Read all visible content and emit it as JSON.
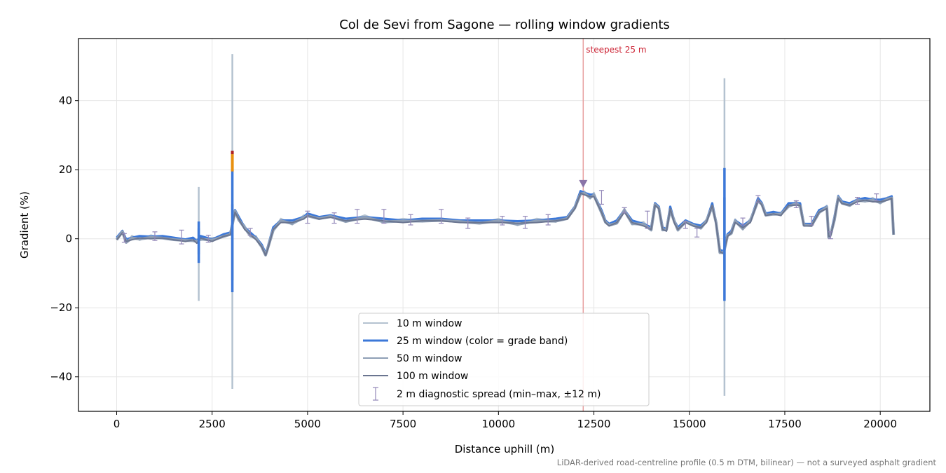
{
  "chart_data": {
    "type": "line",
    "title": "Col de Sevi from Sagone — rolling window gradients",
    "xlabel": "Distance uphill (m)",
    "ylabel": "Gradient (%)",
    "xlim": [
      -1000,
      21300
    ],
    "ylim": [
      -50,
      58
    ],
    "x_ticks": [
      0,
      2500,
      5000,
      7500,
      10000,
      12500,
      15000,
      17500,
      20000
    ],
    "x_tick_labels": [
      "0",
      "2500",
      "5000",
      "7500",
      "10000",
      "12500",
      "15000",
      "17500",
      "20000"
    ],
    "y_ticks": [
      -40,
      -20,
      0,
      20,
      40
    ],
    "y_tick_labels": [
      "−40",
      "−20",
      "0",
      "20",
      "40"
    ],
    "grid": true,
    "legend_position": "lower-center",
    "footnote": "LiDAR-derived road-centreline profile (0.5 m DTM, bilinear) — not a surveyed asphalt gradient",
    "annotation": {
      "text": "steepest 25 m",
      "x": 12220,
      "marker_y": 16
    },
    "colors": {
      "w10": "#b4c2d0",
      "w25": "#3c78d8",
      "w50": "#8f9fb5",
      "w100": "#6a7590",
      "spread": "#9287b8",
      "steep_line": "#e8a0a0",
      "steep_text": "#cc2233",
      "band_orange": "#e89010",
      "band_red": "#b02020"
    },
    "profile": {
      "x": [
        0,
        150,
        250,
        400,
        600,
        900,
        1200,
        1500,
        1800,
        2000,
        2100,
        2200,
        2500,
        2800,
        2980,
        3100,
        3200,
        3350,
        3500,
        3650,
        3800,
        3900,
        3950,
        4100,
        4300,
        4600,
        4900,
        5000,
        5300,
        5600,
        6000,
        6500,
        7000,
        7500,
        8000,
        8500,
        9000,
        9500,
        10000,
        10500,
        11000,
        11500,
        11800,
        12000,
        12150,
        12250,
        12400,
        12500,
        12700,
        12800,
        12900,
        13100,
        13300,
        13500,
        13800,
        14000,
        14100,
        14200,
        14300,
        14400,
        14500,
        14600,
        14700,
        14900,
        15100,
        15300,
        15450,
        15600,
        15700,
        15800,
        15900,
        16000,
        16100,
        16200,
        16400,
        16600,
        16800,
        16900,
        17000,
        17200,
        17400,
        17600,
        17800,
        17900,
        18000,
        18200,
        18400,
        18600,
        18650,
        18700,
        18800,
        18900,
        19000,
        19200,
        19400,
        19600,
        19800,
        20000,
        20200,
        20300,
        20350
      ],
      "y": [
        0,
        2,
        -0.5,
        0,
        0.5,
        0.3,
        0.5,
        0,
        -0.5,
        0,
        -1,
        0.5,
        -0.5,
        1,
        1.5,
        8,
        6,
        3,
        1.5,
        0,
        -2,
        -4.5,
        -3,
        3,
        5,
        5,
        6,
        7,
        6,
        6.5,
        5.5,
        6,
        5.5,
        5,
        5.5,
        5.5,
        5,
        5,
        5,
        4.8,
        5,
        5.5,
        6,
        9,
        13.5,
        13,
        12.5,
        12.5,
        8,
        5,
        4,
        5,
        8,
        5,
        4,
        3,
        10,
        9,
        3,
        2.5,
        9,
        5,
        3,
        5,
        4,
        3.5,
        5,
        10,
        4.5,
        -3.5,
        -4,
        1,
        2,
        5,
        3.5,
        5,
        11.5,
        10,
        7,
        7.5,
        7,
        10,
        10,
        10,
        4,
        4,
        8,
        9,
        1,
        1,
        6,
        12,
        10.5,
        10,
        11,
        11.5,
        11,
        11,
        11.5,
        12,
        1.5
      ]
    },
    "spikes": [
      {
        "x": 2150,
        "w10": [
          -18,
          15
        ],
        "w25": [
          -7,
          5
        ],
        "w50": [
          -4.5,
          3
        ]
      },
      {
        "x": 3030,
        "w10": [
          -43.5,
          53.5
        ],
        "w25": [
          -15.5,
          25.5
        ],
        "w50": [
          -12,
          10
        ]
      },
      {
        "x": 15920,
        "w10": [
          -45.5,
          46.5
        ],
        "w25": [
          -18,
          20.5
        ],
        "w50": [
          -9,
          12
        ]
      }
    ],
    "orange_band": {
      "x": 3030,
      "y0": 19.5,
      "y1": 24.5
    },
    "red_band": {
      "x": 3030,
      "y0": 24.5,
      "y1": 25.5
    },
    "errorbars": [
      {
        "x": 200,
        "low": -1,
        "high": 1.5
      },
      {
        "x": 1000,
        "low": -0.5,
        "high": 2
      },
      {
        "x": 1700,
        "low": -1.5,
        "high": 2.5
      },
      {
        "x": 2400,
        "low": -1,
        "high": 1
      },
      {
        "x": 3500,
        "low": 1,
        "high": 3
      },
      {
        "x": 5000,
        "low": 4.5,
        "high": 8
      },
      {
        "x": 5700,
        "low": 4.5,
        "high": 7.5
      },
      {
        "x": 6300,
        "low": 4.5,
        "high": 8.5
      },
      {
        "x": 7000,
        "low": 4.5,
        "high": 8.5
      },
      {
        "x": 7700,
        "low": 4,
        "high": 7
      },
      {
        "x": 8500,
        "low": 4.5,
        "high": 8.5
      },
      {
        "x": 9200,
        "low": 3,
        "high": 6
      },
      {
        "x": 10100,
        "low": 4,
        "high": 6.5
      },
      {
        "x": 10700,
        "low": 3,
        "high": 6.5
      },
      {
        "x": 11300,
        "low": 4,
        "high": 7
      },
      {
        "x": 12700,
        "low": 10,
        "high": 14
      },
      {
        "x": 13300,
        "low": 7.5,
        "high": 9
      },
      {
        "x": 13900,
        "low": 3,
        "high": 8
      },
      {
        "x": 14900,
        "low": 3,
        "high": 5
      },
      {
        "x": 15200,
        "low": 0.5,
        "high": 3
      },
      {
        "x": 16400,
        "low": 4,
        "high": 6
      },
      {
        "x": 16800,
        "low": 10.5,
        "high": 12.5
      },
      {
        "x": 17800,
        "low": 9,
        "high": 11
      },
      {
        "x": 18200,
        "low": 4,
        "high": 6.5
      },
      {
        "x": 18700,
        "low": 0,
        "high": 2
      },
      {
        "x": 19400,
        "low": 10,
        "high": 12
      },
      {
        "x": 19900,
        "low": 11,
        "high": 13
      }
    ],
    "series": [
      {
        "name": "10 m window"
      },
      {
        "name": "25 m window (color = grade band)"
      },
      {
        "name": "50 m window"
      },
      {
        "name": "100 m window"
      },
      {
        "name": "2 m diagnostic spread (min–max, ±12 m)"
      }
    ]
  }
}
